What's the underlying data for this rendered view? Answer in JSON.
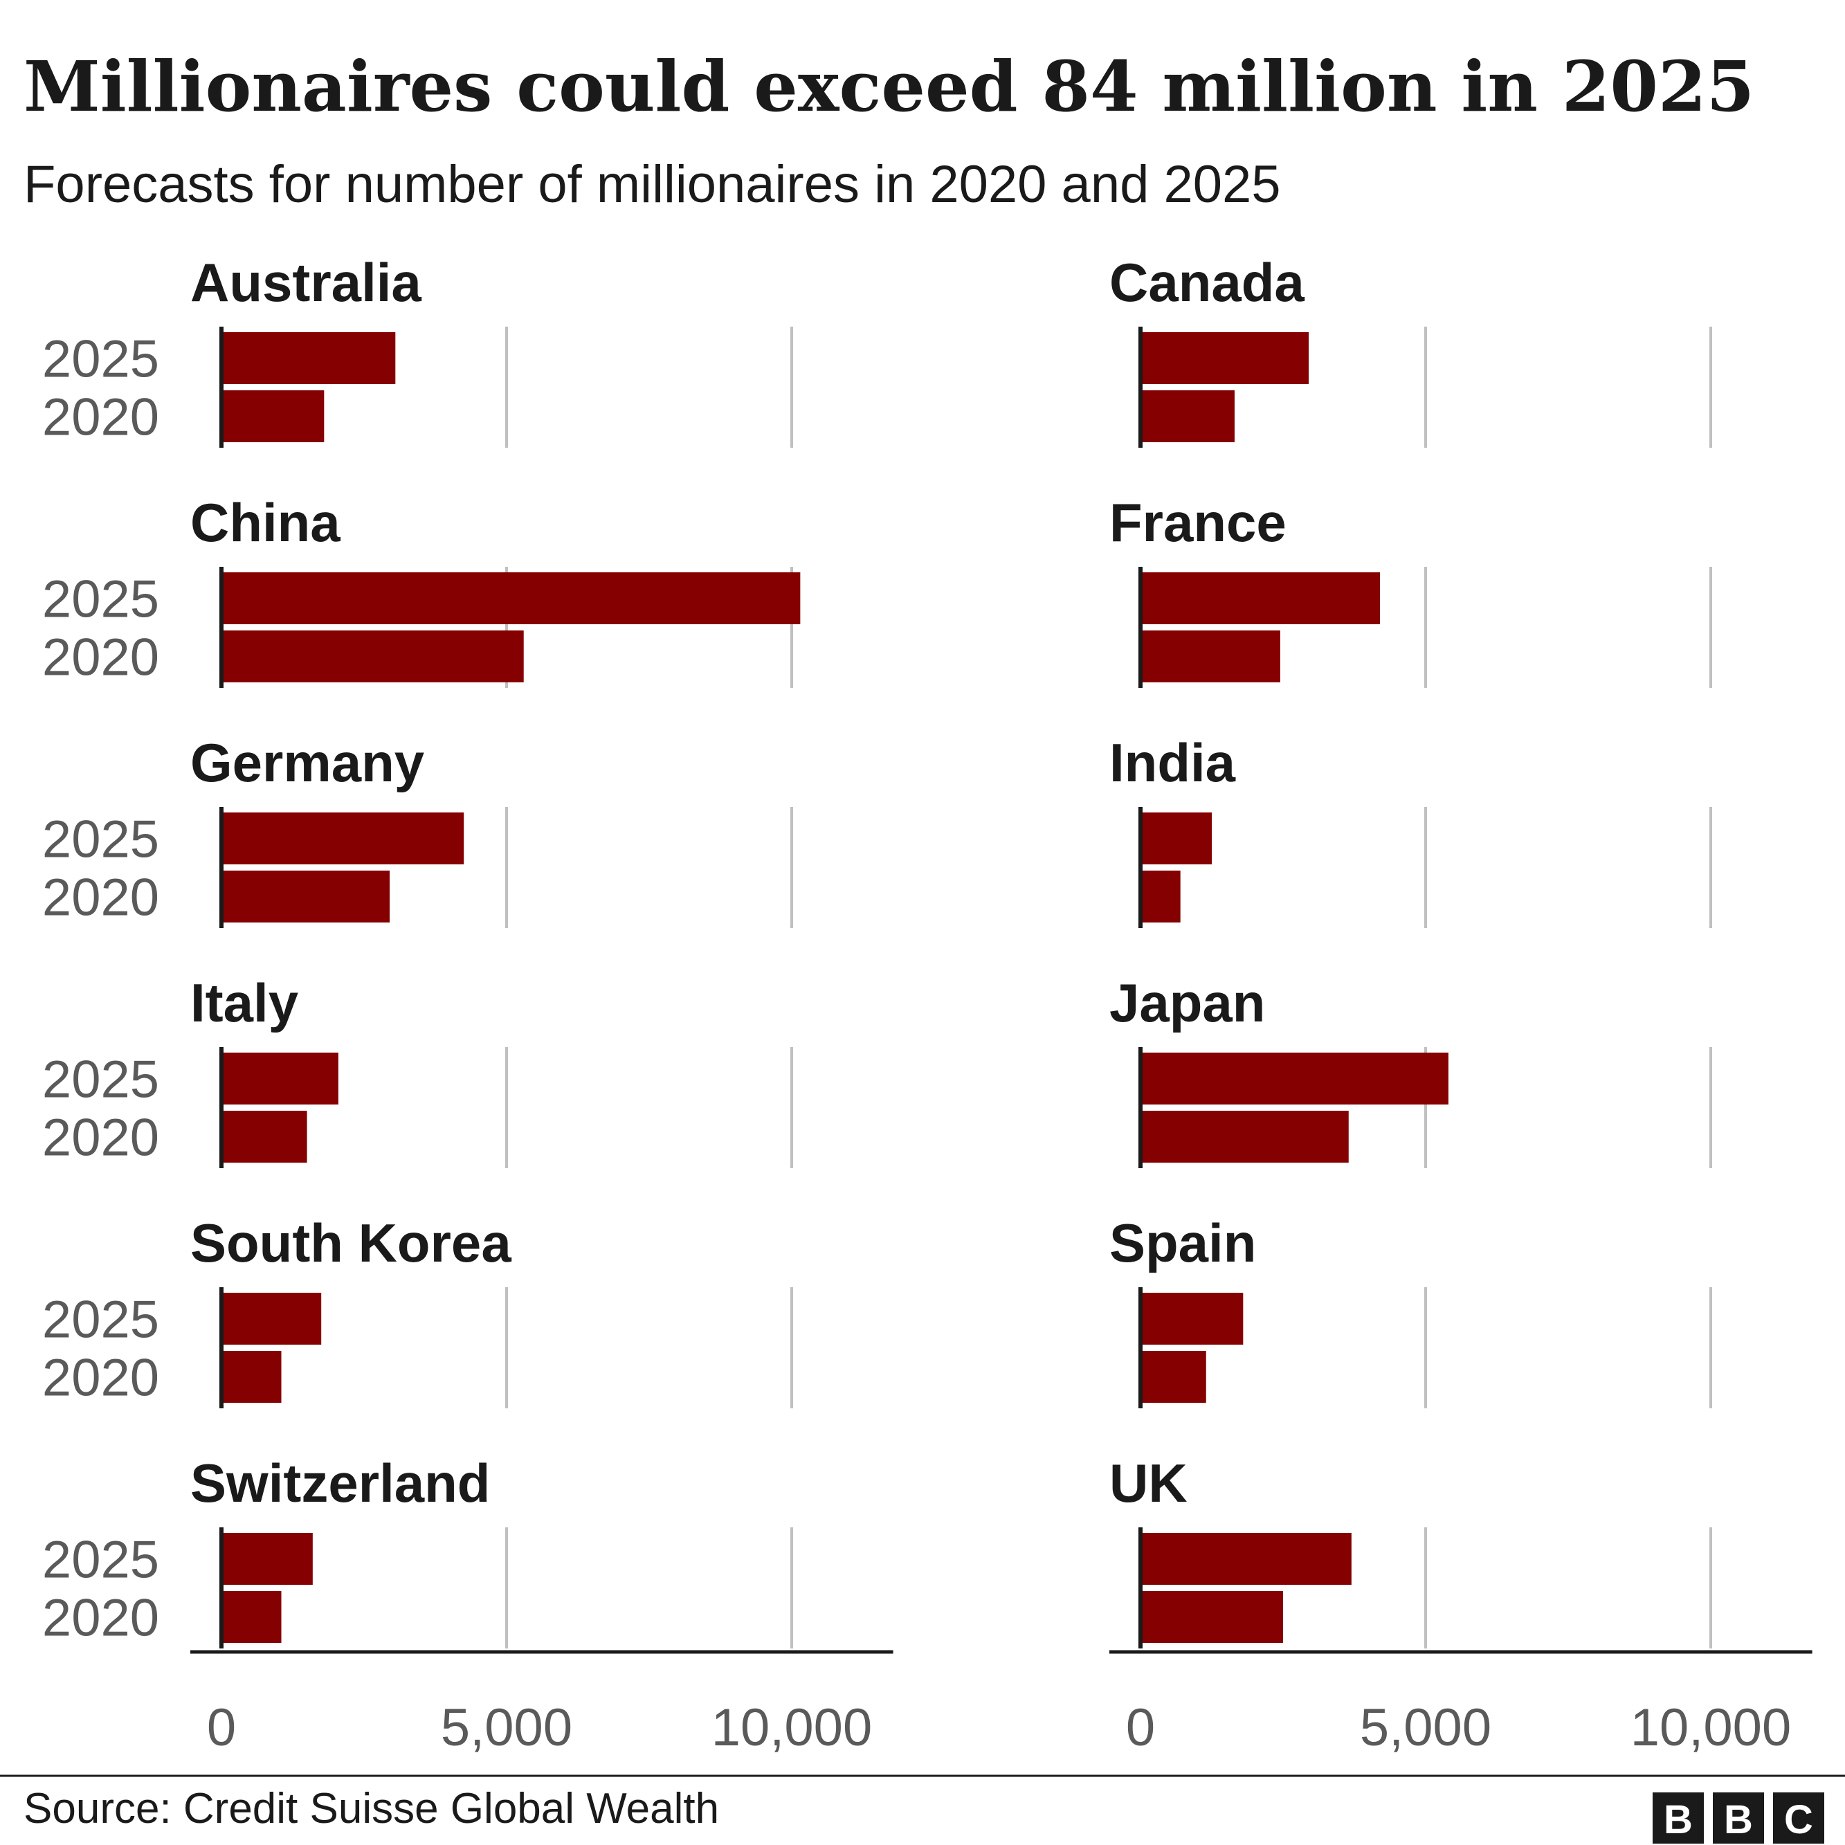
{
  "header": {
    "title": "Millionaires could exceed 84 million in 2025",
    "subtitle": "Forecasts for number of millionaires in 2020 and 2025"
  },
  "footer": {
    "source": "Source: Credit Suisse Global Wealth",
    "logo_letters": [
      "B",
      "B",
      "C"
    ]
  },
  "colors": {
    "bar": "#850000",
    "grid": "#c0c0c0",
    "axis": "#1a1a1a"
  },
  "chart_data": {
    "type": "bar",
    "orientation": "horizontal",
    "layout": "small-multiples",
    "categories": [
      "2025",
      "2020"
    ],
    "xlim": [
      0,
      11500
    ],
    "xticks": [
      0,
      5000,
      10000
    ],
    "xtick_labels": [
      "0",
      "5,000",
      "10,000"
    ],
    "grid": true,
    "panels": [
      {
        "name": "Australia",
        "values": [
          3050,
          1800
        ]
      },
      {
        "name": "Canada",
        "values": [
          2950,
          1650
        ]
      },
      {
        "name": "China",
        "values": [
          10150,
          5300
        ]
      },
      {
        "name": "France",
        "values": [
          4200,
          2450
        ]
      },
      {
        "name": "Germany",
        "values": [
          4250,
          2950
        ]
      },
      {
        "name": "India",
        "values": [
          1250,
          700
        ]
      },
      {
        "name": "Italy",
        "values": [
          2050,
          1500
        ]
      },
      {
        "name": "Japan",
        "values": [
          5400,
          3650
        ]
      },
      {
        "name": "South Korea",
        "values": [
          1750,
          1050
        ]
      },
      {
        "name": "Spain",
        "values": [
          1800,
          1150
        ]
      },
      {
        "name": "Switzerland",
        "values": [
          1600,
          1050
        ]
      },
      {
        "name": "UK",
        "values": [
          3700,
          2500
        ]
      }
    ]
  }
}
